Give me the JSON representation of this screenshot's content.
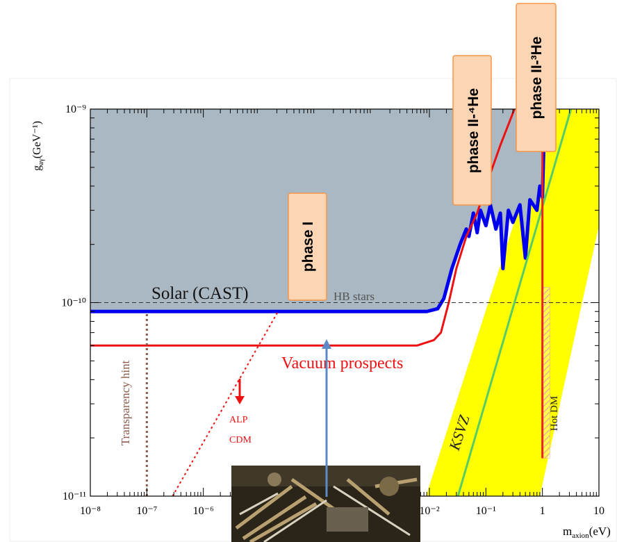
{
  "chart_data": {
    "type": "line",
    "xscale": "log",
    "yscale": "log",
    "xlim": [
      1e-08,
      10
    ],
    "ylim": [
      1e-11,
      1e-09
    ],
    "xticks": [
      {
        "value": 1e-08,
        "label": "10⁻⁸"
      },
      {
        "value": 1e-07,
        "label": "10⁻⁷"
      },
      {
        "value": 1e-06,
        "label": "10⁻⁶"
      },
      {
        "value": 0.01,
        "label": "10⁻²"
      },
      {
        "value": 0.1,
        "label": "10⁻¹"
      },
      1,
      10
    ],
    "yticks": [
      {
        "value": 1e-11,
        "label": "10⁻¹¹"
      },
      {
        "value": 1e-10,
        "label": "10⁻¹⁰"
      },
      {
        "value": 1e-09,
        "label": "10⁻⁹"
      }
    ],
    "x_label": {
      "main": "m",
      "sub": "axion",
      "unit": "(eV)"
    },
    "y_label": {
      "main": "g",
      "sub": "aγ",
      "unit": "(GeV⁻¹)"
    },
    "series": [
      {
        "name": "Solar (CAST)",
        "color": "#0000ee",
        "width": 5,
        "style": "solid",
        "fill_above": "#aab8c3",
        "x": [
          1e-08,
          0.009,
          0.014,
          0.018,
          0.025,
          0.035,
          0.045,
          0.05,
          0.06,
          0.07,
          0.08,
          0.1,
          0.12,
          0.15,
          0.18,
          0.2,
          0.25,
          0.3,
          0.4,
          0.5,
          0.6,
          0.8,
          0.9,
          1.0,
          1.05,
          1.08
        ],
        "values": [
          9e-11,
          9e-11,
          9.3e-11,
          1.05e-10,
          1.5e-10,
          2e-10,
          2.4e-10,
          2.2e-10,
          2.9e-10,
          2.3e-10,
          3e-10,
          2.5e-10,
          3.2e-10,
          2.4e-10,
          2.9e-10,
          1.5e-10,
          3e-10,
          2.6e-10,
          3.2e-10,
          1.7e-10,
          3.4e-10,
          3e-10,
          4e-10,
          3.5e-10,
          6e-10,
          1e-09
        ]
      },
      {
        "name": "Vacuum prospects",
        "color": "#ee1111",
        "width": 3,
        "style": "solid",
        "x": [
          1e-08,
          0.006,
          0.012,
          0.016,
          0.022,
          0.03,
          0.045,
          0.07,
          0.1,
          0.18,
          0.32
        ],
        "values": [
          6e-11,
          6e-11,
          6.4e-11,
          7e-11,
          1e-10,
          1.5e-10,
          2.2e-10,
          2.9e-10,
          4e-10,
          6.5e-10,
          1e-09
        ]
      },
      {
        "name": "HB stars",
        "color": "#333333",
        "width": 1,
        "style": "dashed",
        "x": [
          1e-08,
          10
        ],
        "values": [
          1e-10,
          1e-10
        ]
      },
      {
        "name": "Transparency hint",
        "color": "#8b5a4a",
        "width": 3,
        "style": "dotted",
        "x": [
          1e-07,
          1e-07
        ],
        "values": [
          1e-11,
          9e-11
        ]
      },
      {
        "color": "#ee1111",
        "width": 2,
        "style": "dotted",
        "x": [
          2.85e-07,
          2.1e-05
        ],
        "values": [
          1e-11,
          9e-11
        ]
      },
      {
        "name": "KSVZ",
        "color": "#55cc66",
        "width": 3,
        "style": "solid",
        "x": [
          0.032,
          3.2
        ],
        "values": [
          1e-11,
          1e-09
        ]
      },
      {
        "name": "Hot DM",
        "color": "#ee2222",
        "width": 3,
        "style": "solid",
        "x": [
          1,
          1
        ],
        "values": [
          1.57e-11,
          1e-09
        ]
      }
    ],
    "bands": [
      {
        "color": "#ffff00",
        "x": [
          0.0087,
          1.4,
          10,
          10,
          0.9
        ],
        "values": [
          1e-11,
          1e-09,
          1e-09,
          2.5e-10,
          1e-11
        ]
      }
    ],
    "hatch": {
      "color": "#f2a0a0",
      "x": [
        1,
        1.35
      ],
      "values": [
        1.57e-11,
        1.2e-10
      ]
    },
    "annotations": [
      "ALP",
      "CDM",
      "phase I",
      "phase II-⁴He",
      "phase II-³He"
    ]
  }
}
